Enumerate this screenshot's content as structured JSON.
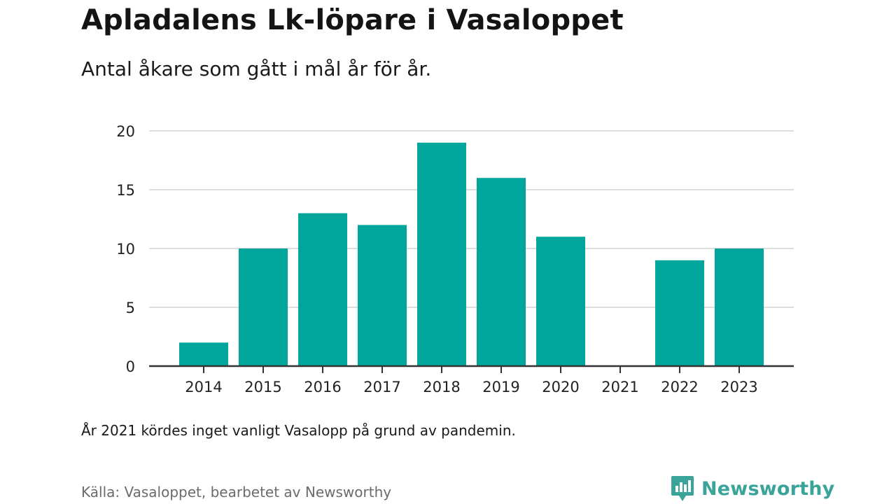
{
  "title": "Apladalens Lk-löpare i Vasaloppet",
  "subtitle": "Antal åkare som gått i mål år för år.",
  "note": "År 2021 kördes inget vanligt Vasalopp på grund av pandemin.",
  "source": "Källa: Vasaloppet, bearbetet av Newsworthy",
  "brand": {
    "name": "Newsworthy",
    "color": "#3aa39a"
  },
  "colors": {
    "bar": "#00a59b",
    "grid": "#dddddd",
    "axis": "#333333"
  },
  "chart_data": {
    "type": "bar",
    "categories": [
      "2014",
      "2015",
      "2016",
      "2017",
      "2018",
      "2019",
      "2020",
      "2021",
      "2022",
      "2023"
    ],
    "values": [
      2,
      10,
      13,
      12,
      19,
      16,
      11,
      0,
      9,
      10
    ],
    "ylim": [
      0,
      20
    ],
    "yticks": [
      0,
      5,
      10,
      15,
      20
    ],
    "grid": true,
    "xlabel": "",
    "ylabel": ""
  }
}
